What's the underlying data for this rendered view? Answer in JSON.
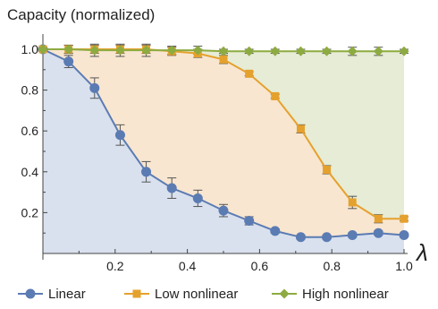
{
  "chart_data": {
    "type": "line",
    "title": "",
    "xlabel": "λ",
    "ylabel": "Capacity (normalized)",
    "xlim": [
      0,
      1.0
    ],
    "ylim": [
      0,
      1.05
    ],
    "xticks": [
      "0.2",
      "0.4",
      "0.6",
      "0.8",
      "1.0"
    ],
    "yticks": [
      "0.2",
      "0.4",
      "0.6",
      "0.8",
      "1.0"
    ],
    "grid": false,
    "legend_position": "bottom",
    "area_fill": true,
    "x": [
      0,
      0.071,
      0.143,
      0.214,
      0.286,
      0.357,
      0.429,
      0.5,
      0.571,
      0.643,
      0.714,
      0.786,
      0.857,
      0.929,
      1.0
    ],
    "series": [
      {
        "name": "Linear",
        "marker": "circle",
        "color": "#5b7bb3",
        "fill": "#d9e1ee",
        "values": [
          1.0,
          0.94,
          0.81,
          0.58,
          0.4,
          0.32,
          0.27,
          0.21,
          0.16,
          0.11,
          0.08,
          0.08,
          0.09,
          0.1,
          0.09
        ],
        "errors": [
          0.01,
          0.03,
          0.05,
          0.05,
          0.05,
          0.05,
          0.04,
          0.03,
          0.02,
          0.01,
          0.01,
          0.01,
          0.01,
          0.01,
          0.01
        ]
      },
      {
        "name": "Low nonlinear",
        "marker": "square",
        "color": "#e5a12d",
        "fill": "#f8e6d0",
        "values": [
          1.0,
          1.0,
          1.0,
          1.0,
          1.0,
          0.99,
          0.98,
          0.95,
          0.88,
          0.77,
          0.61,
          0.41,
          0.25,
          0.17,
          0.17
        ],
        "errors": [
          0.01,
          0.02,
          0.02,
          0.02,
          0.02,
          0.02,
          0.02,
          0.02,
          0.01,
          0.01,
          0.02,
          0.02,
          0.03,
          0.02,
          0.01
        ]
      },
      {
        "name": "High nonlinear",
        "marker": "diamond",
        "color": "#8dab41",
        "fill": "#e6ecd5",
        "values": [
          1.0,
          1.0,
          0.995,
          0.995,
          0.995,
          0.995,
          0.995,
          0.99,
          0.99,
          0.99,
          0.99,
          0.99,
          0.99,
          0.99,
          0.99
        ],
        "errors": [
          0.01,
          0.02,
          0.03,
          0.03,
          0.03,
          0.02,
          0.02,
          0.01,
          0.01,
          0.01,
          0.01,
          0.01,
          0.02,
          0.02,
          0.01
        ]
      }
    ]
  }
}
